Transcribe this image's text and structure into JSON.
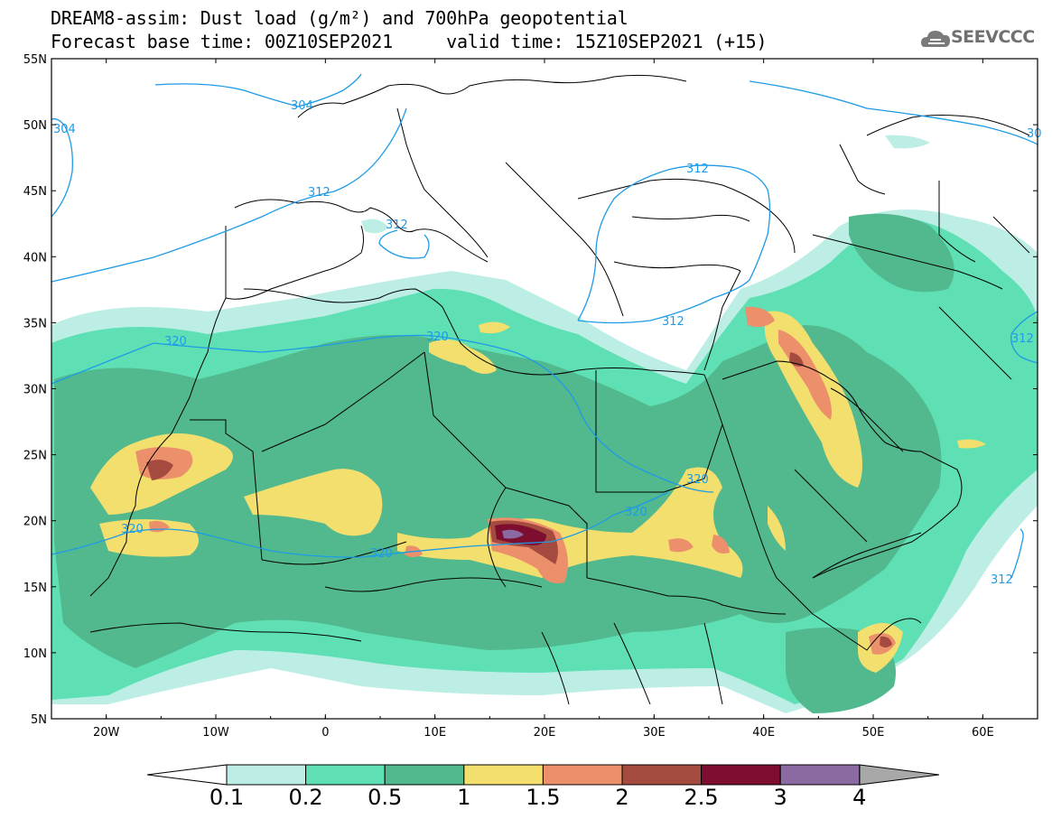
{
  "header": {
    "title_line1": "DREAM8-assim: Dust load (g/m²) and 700hPa geopotential",
    "title_line2": "Forecast base time: 00Z10SEP2021     valid time: 15Z10SEP2021 (+15)",
    "logo_text": "SEEVCCC"
  },
  "map": {
    "lon_range": [
      -25,
      65
    ],
    "lat_range": [
      5,
      55
    ],
    "lon_ticks": [
      "20W",
      "10W",
      "0",
      "10E",
      "20E",
      "30E",
      "40E",
      "50E",
      "60E"
    ],
    "lat_ticks": [
      "55N",
      "50N",
      "45N",
      "40N",
      "35N",
      "30N",
      "25N",
      "20N",
      "15N",
      "10N",
      "5N"
    ],
    "contour_labels": [
      "304",
      "304",
      "312",
      "312",
      "312",
      "312",
      "312",
      "312",
      "312",
      "320",
      "320",
      "320",
      "320",
      "320",
      "320",
      "30"
    ],
    "contour_color": "#1e9be6"
  },
  "colorbar": {
    "labels": [
      "0.1",
      "0.2",
      "0.5",
      "1",
      "1.5",
      "2",
      "2.5",
      "3",
      "4"
    ],
    "colors": [
      "#bdeee6",
      "#5ee0b4",
      "#52b88e",
      "#f3df6e",
      "#ec906b",
      "#a44a3e",
      "#7e0e2f",
      "#8a6aa0",
      "#a8a8a8"
    ],
    "under_color": "#ffffff"
  }
}
